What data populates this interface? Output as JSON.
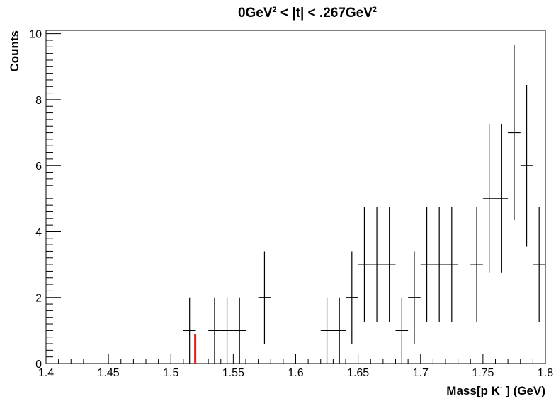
{
  "chart_data": {
    "type": "scatter",
    "title": {
      "part1": "0GeV",
      "sup1": "2",
      "part2": " < |t| < .267GeV",
      "sup2": "2"
    },
    "xlabel": {
      "part1": "Mass[p K",
      "sup": "-",
      "part2": " ] (GeV)"
    },
    "ylabel": "Counts",
    "xlim": [
      1.4,
      1.8
    ],
    "ylim": [
      0,
      10.1
    ],
    "x_ticks": [
      "1.4",
      "1.45",
      "1.5",
      "1.55",
      "1.6",
      "1.65",
      "1.7",
      "1.75",
      "1.8"
    ],
    "y_ticks": [
      "0",
      "2",
      "4",
      "6",
      "8",
      "10"
    ],
    "bin_width": 0.01,
    "series": [
      {
        "x": [
          1.515,
          1.535,
          1.545,
          1.555,
          1.575,
          1.625,
          1.635,
          1.645,
          1.655,
          1.665,
          1.675,
          1.685,
          1.695,
          1.705,
          1.715,
          1.725,
          1.745,
          1.755,
          1.765,
          1.775,
          1.785,
          1.795
        ],
        "y": [
          1,
          1,
          1,
          1,
          2,
          1,
          1,
          2,
          3,
          3,
          3,
          1,
          2,
          3,
          3,
          3,
          3,
          5,
          5,
          7,
          6,
          3
        ],
        "yerr_low": [
          1,
          1,
          1,
          1,
          1.4,
          1,
          1,
          1.4,
          1.75,
          1.75,
          1.75,
          1,
          1.4,
          1.75,
          1.75,
          1.75,
          1.75,
          2.25,
          2.25,
          2.65,
          2.45,
          1.75
        ],
        "yerr_high": [
          1,
          1,
          1,
          1,
          1.4,
          1,
          1,
          1.4,
          1.75,
          1.75,
          1.75,
          1,
          1.4,
          1.75,
          1.75,
          1.75,
          1.75,
          2.25,
          2.25,
          2.65,
          2.45,
          1.75
        ],
        "color": "#000000"
      }
    ],
    "marker_line": {
      "x": 1.5195,
      "y": 0.9,
      "color": "#e0201c"
    },
    "grid": false
  }
}
